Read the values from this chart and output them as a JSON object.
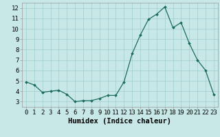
{
  "x": [
    0,
    1,
    2,
    3,
    4,
    5,
    6,
    7,
    8,
    9,
    10,
    11,
    12,
    13,
    14,
    15,
    16,
    17,
    18,
    19,
    20,
    21,
    22,
    23
  ],
  "y": [
    4.9,
    4.6,
    3.9,
    4.0,
    4.1,
    3.7,
    3.0,
    3.1,
    3.1,
    3.3,
    3.6,
    3.6,
    4.9,
    7.6,
    9.4,
    10.9,
    11.4,
    12.1,
    10.1,
    10.6,
    8.6,
    7.0,
    6.0,
    3.7
  ],
  "line_color": "#1a6b5a",
  "marker_color": "#1a6b5a",
  "bg_color": "#c8e8e8",
  "grid_color": "#a0cccc",
  "xlabel": "Humidex (Indice chaleur)",
  "xlim": [
    -0.5,
    23.5
  ],
  "ylim": [
    2.5,
    12.5
  ],
  "yticks": [
    3,
    4,
    5,
    6,
    7,
    8,
    9,
    10,
    11,
    12
  ],
  "xticks": [
    0,
    1,
    2,
    3,
    4,
    5,
    6,
    7,
    8,
    9,
    10,
    11,
    12,
    13,
    14,
    15,
    16,
    17,
    18,
    19,
    20,
    21,
    22,
    23
  ],
  "tick_fontsize": 6.5,
  "xlabel_fontsize": 7.5
}
